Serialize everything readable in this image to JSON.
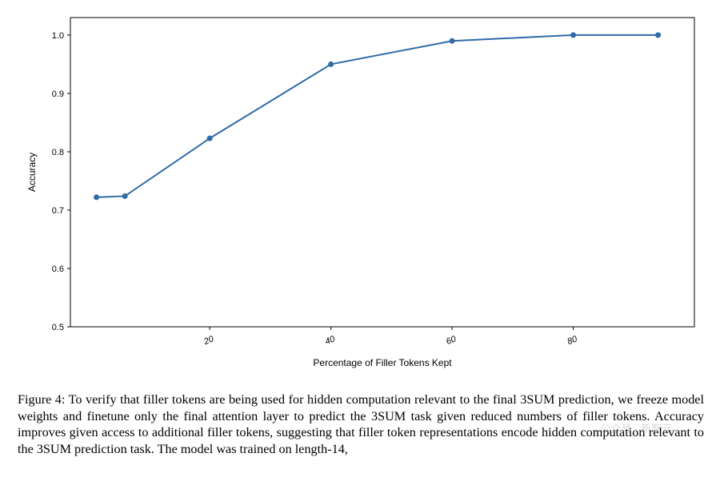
{
  "chart": {
    "type": "line",
    "xlabel": "Percentage of Filler Tokens Kept",
    "ylabel": "Accuracy",
    "label_fontsize": 12,
    "tick_fontsize": 11,
    "font_family": "sans-serif",
    "xlim": [
      -3,
      100
    ],
    "ylim": [
      0.5,
      1.03
    ],
    "xticks": [
      20,
      40,
      60,
      80
    ],
    "xtick_labels": [
      "20",
      "40",
      "60",
      "80"
    ],
    "yticks": [
      0.5,
      0.6,
      0.7,
      0.8,
      0.9,
      1.0
    ],
    "ytick_labels": [
      "0.5",
      "0.6",
      "0.7",
      "0.8",
      "0.9",
      "1.0"
    ],
    "series": {
      "x": [
        1.3,
        6,
        20,
        40,
        60,
        80,
        94
      ],
      "y": [
        0.722,
        0.724,
        0.823,
        0.95,
        0.99,
        1.0,
        1.0
      ],
      "line_color": "#2f6ba7",
      "line_width": 2,
      "marker": "circle",
      "marker_size": 6,
      "marker_face": "#2f6ba7",
      "marker_edge": "#2f6ba7"
    },
    "background_color": "#ffffff",
    "spine_color": "#000000",
    "tick_len": 4
  },
  "caption": {
    "label": "Figure 4:",
    "text": "To verify that filler tokens are being used for hidden computation relevant to the final 3SUM prediction, we freeze model weights and finetune only the final attention layer to predict the 3SUM task given reduced numbers of filler tokens. Accuracy improves given access to additional filler tokens, suggesting that filler token representations encode hidden computation relevant to the 3SUM prediction task. The model was trained on length-14,"
  },
  "watermark": "公众号 · 新智元"
}
